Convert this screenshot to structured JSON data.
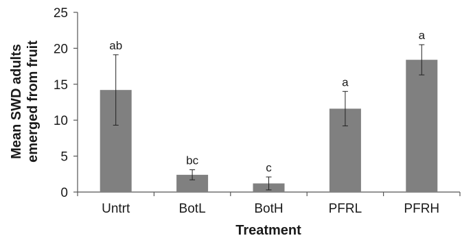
{
  "chart_data": {
    "type": "bar",
    "title": "",
    "xlabel": "Treatment",
    "ylabel_lines": [
      "Mean SWD adults",
      "emerged from fruit"
    ],
    "ylim": [
      0,
      25
    ],
    "yticks": [
      0,
      5,
      10,
      15,
      20,
      25
    ],
    "grid": false,
    "legend": "none",
    "bar_color": "#808080",
    "categories": [
      "Untrt",
      "BotL",
      "BotH",
      "PFRL",
      "PFRH"
    ],
    "values": [
      14.2,
      2.4,
      1.2,
      11.6,
      18.4
    ],
    "errors": [
      4.9,
      0.7,
      0.9,
      2.4,
      2.1
    ],
    "significance_labels": [
      "ab",
      "bc",
      "c",
      "a",
      "a"
    ]
  }
}
